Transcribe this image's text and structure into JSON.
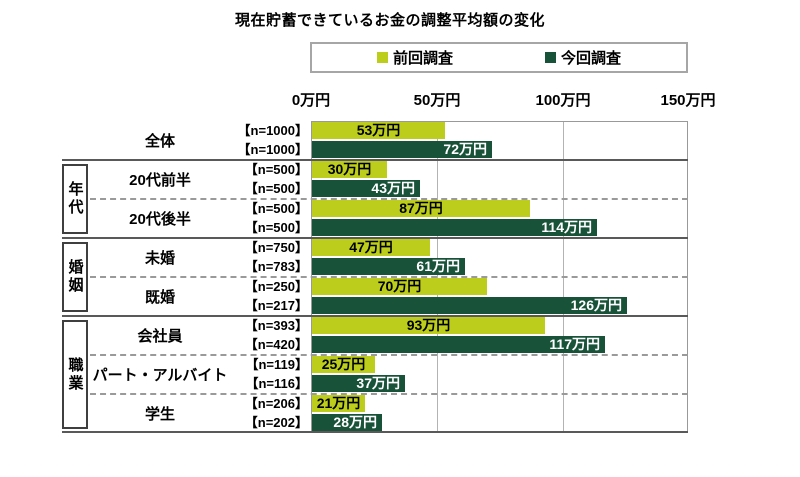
{
  "title": "現在貯蓄できているお金の調整平均額の変化",
  "legend": {
    "items": [
      {
        "label": "前回調査",
        "color": "#bccd1b"
      },
      {
        "label": "今回調査",
        "color": "#175239"
      }
    ]
  },
  "axis": {
    "ticks": [
      "0万円",
      "50万円",
      "100万円",
      "150万円"
    ]
  },
  "chart_data": {
    "type": "bar",
    "orientation": "horizontal",
    "title": "現在貯蓄できているお金の調整平均額の変化",
    "unit": "万円",
    "xlim": [
      0,
      150
    ],
    "x_ticks": [
      0,
      50,
      100,
      150
    ],
    "x_tick_labels": [
      "0万円",
      "50万円",
      "100万円",
      "150万円"
    ],
    "grid": true,
    "legend_position": "top",
    "series_names": [
      "前回調査",
      "今回調査"
    ],
    "series_colors": [
      "#bccd1b",
      "#175239"
    ],
    "groups": [
      {
        "group": "",
        "rows": [
          {
            "label": "全体",
            "n": [
              "【n=1000】",
              "【n=1000】"
            ],
            "values": [
              53,
              72
            ],
            "bar_labels": [
              "53万円",
              "72万円"
            ]
          }
        ]
      },
      {
        "group": "年代",
        "rows": [
          {
            "label": "20代前半",
            "n": [
              "【n=500】",
              "【n=500】"
            ],
            "values": [
              30,
              43
            ],
            "bar_labels": [
              "30万円",
              "43万円"
            ]
          },
          {
            "label": "20代後半",
            "n": [
              "【n=500】",
              "【n=500】"
            ],
            "values": [
              87,
              114
            ],
            "bar_labels": [
              "87万円",
              "114万円"
            ]
          }
        ]
      },
      {
        "group": "婚姻",
        "rows": [
          {
            "label": "未婚",
            "n": [
              "【n=750】",
              "【n=783】"
            ],
            "values": [
              47,
              61
            ],
            "bar_labels": [
              "47万円",
              "61万円"
            ]
          },
          {
            "label": "既婚",
            "n": [
              "【n=250】",
              "【n=217】"
            ],
            "values": [
              70,
              126
            ],
            "bar_labels": [
              "70万円",
              "126万円"
            ]
          }
        ]
      },
      {
        "group": "職業",
        "rows": [
          {
            "label": "会社員",
            "n": [
              "【n=393】",
              "【n=420】"
            ],
            "values": [
              93,
              117
            ],
            "bar_labels": [
              "93万円",
              "117万円"
            ]
          },
          {
            "label": "パート・アルバイト",
            "n": [
              "【n=119】",
              "【n=116】"
            ],
            "values": [
              25,
              37
            ],
            "bar_labels": [
              "25万円",
              "37万円"
            ]
          },
          {
            "label": "学生",
            "n": [
              "【n=206】",
              "【n=202】"
            ],
            "values": [
              21,
              28
            ],
            "bar_labels": [
              "21万円",
              "28万円"
            ]
          }
        ]
      }
    ]
  }
}
